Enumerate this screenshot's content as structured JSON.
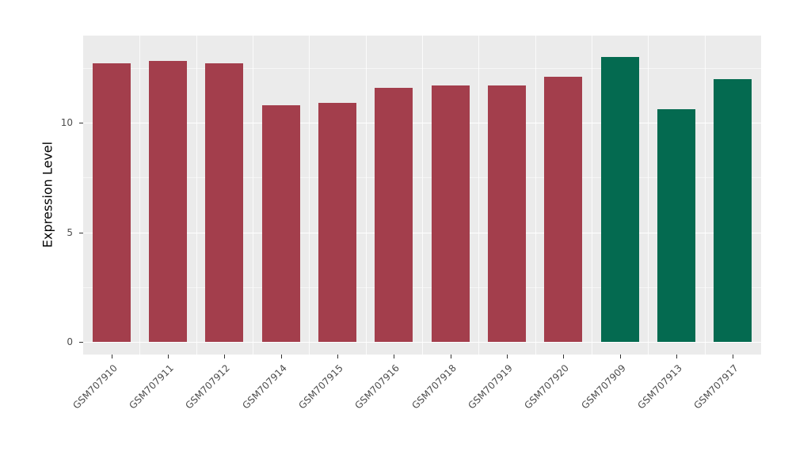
{
  "chart_data": {
    "type": "bar",
    "title": "",
    "xlabel": "",
    "ylabel": "Expression Level",
    "ylim": [
      0,
      13.97
    ],
    "yticks": [
      0,
      5,
      10
    ],
    "minor_gridlines": [
      2.5,
      7.5,
      12.5
    ],
    "grid": "on",
    "legend": "none",
    "panel_background": "#EBEBEB",
    "grid_color": "#FFFFFF",
    "categories": [
      "GSM707910",
      "GSM707911",
      "GSM707912",
      "GSM707914",
      "GSM707915",
      "GSM707916",
      "GSM707918",
      "GSM707919",
      "GSM707920",
      "GSM707909",
      "GSM707913",
      "GSM707917"
    ],
    "values": [
      12.7,
      12.8,
      12.7,
      10.8,
      10.9,
      11.6,
      11.7,
      11.7,
      12.1,
      13.0,
      10.6,
      12.0
    ],
    "bar_colors": [
      "#A33E4C",
      "#A33E4C",
      "#A33E4C",
      "#A33E4C",
      "#A33E4C",
      "#A33E4C",
      "#A33E4C",
      "#A33E4C",
      "#A33E4C",
      "#046A50",
      "#046A50",
      "#046A50"
    ],
    "palette": {
      "group1": "#A33E4C",
      "group2": "#046A50"
    }
  }
}
